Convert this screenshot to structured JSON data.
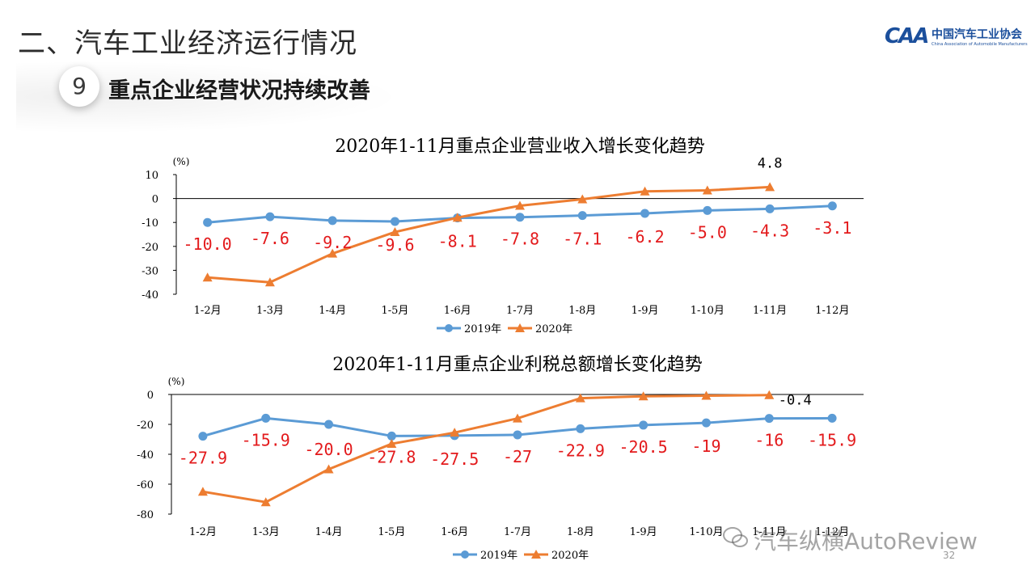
{
  "header": {
    "section_title": "二、汽车工业经济运行情况",
    "logo_mark": "CAA",
    "logo_cn": "中国汽车工业协会",
    "logo_en": "China Association of Automobile Manufacturers",
    "item_number": "9",
    "item_title": "重点企业经营状况持续改善"
  },
  "colors": {
    "series_2019": "#5b9bd5",
    "series_2020": "#ed7d31",
    "data_label": "#e31a1c",
    "axis": "#000000"
  },
  "chart_data": [
    {
      "type": "line",
      "title": "2020年1-11月重点企业营业收入增长变化趋势",
      "ylabel": "(%)",
      "categories": [
        "1-2月",
        "1-3月",
        "1-4月",
        "1-5月",
        "1-6月",
        "1-7月",
        "1-8月",
        "1-9月",
        "1-10月",
        "1-11月",
        "1-12月"
      ],
      "ylim": [
        -40,
        10
      ],
      "yticks": [
        "10",
        "0",
        "-10",
        "-20",
        "-30",
        "-40"
      ],
      "series": [
        {
          "name": "2019年",
          "values": [
            -10.0,
            -7.6,
            -9.2,
            -9.6,
            -8.1,
            -7.8,
            -7.1,
            -6.2,
            -5.0,
            -4.3,
            -3.1
          ],
          "labels": [
            "-10.0",
            "-7.6",
            "-9.2",
            "-9.6",
            "-8.1",
            "-7.8",
            "-7.1",
            "-6.2",
            "-5.0",
            "-4.3",
            "-3.1"
          ]
        },
        {
          "name": "2020年",
          "values": [
            -33,
            -35,
            -23,
            -14,
            -8,
            -3,
            -0.3,
            3,
            3.4,
            4.8,
            null
          ],
          "labels": [
            "",
            "",
            "",
            "",
            "",
            "",
            "",
            "",
            "",
            "4.8",
            ""
          ]
        }
      ],
      "legend": "bottom-center"
    },
    {
      "type": "line",
      "title": "2020年1-11月重点企业利税总额增长变化趋势",
      "ylabel": "(%)",
      "categories": [
        "1-2月",
        "1-3月",
        "1-4月",
        "1-5月",
        "1-6月",
        "1-7月",
        "1-8月",
        "1-9月",
        "1-10月",
        "1-11月",
        "1-12月"
      ],
      "ylim": [
        -80,
        0
      ],
      "yticks": [
        "0",
        "-20",
        "-40",
        "-60",
        "-80"
      ],
      "series": [
        {
          "name": "2019年",
          "values": [
            -27.9,
            -15.9,
            -20.0,
            -27.8,
            -27.5,
            -27,
            -22.9,
            -20.5,
            -19,
            -16,
            -15.9
          ],
          "labels": [
            "-27.9",
            "-15.9",
            "-20.0",
            "-27.8",
            "-27.5",
            "-27",
            "-22.9",
            "-20.5",
            "-19",
            "-16",
            "-15.9"
          ]
        },
        {
          "name": "2020年",
          "values": [
            -65,
            -72,
            -50,
            -33,
            -25.5,
            -16,
            -2.5,
            -1.2,
            -0.8,
            -0.4,
            null
          ],
          "labels": [
            "",
            "",
            "",
            "",
            "",
            "",
            "",
            "",
            "",
            "-0.4",
            ""
          ]
        }
      ],
      "legend": "bottom-center"
    }
  ],
  "footer": {
    "watermark": "汽车纵横AutoReview",
    "page_number": "32"
  }
}
